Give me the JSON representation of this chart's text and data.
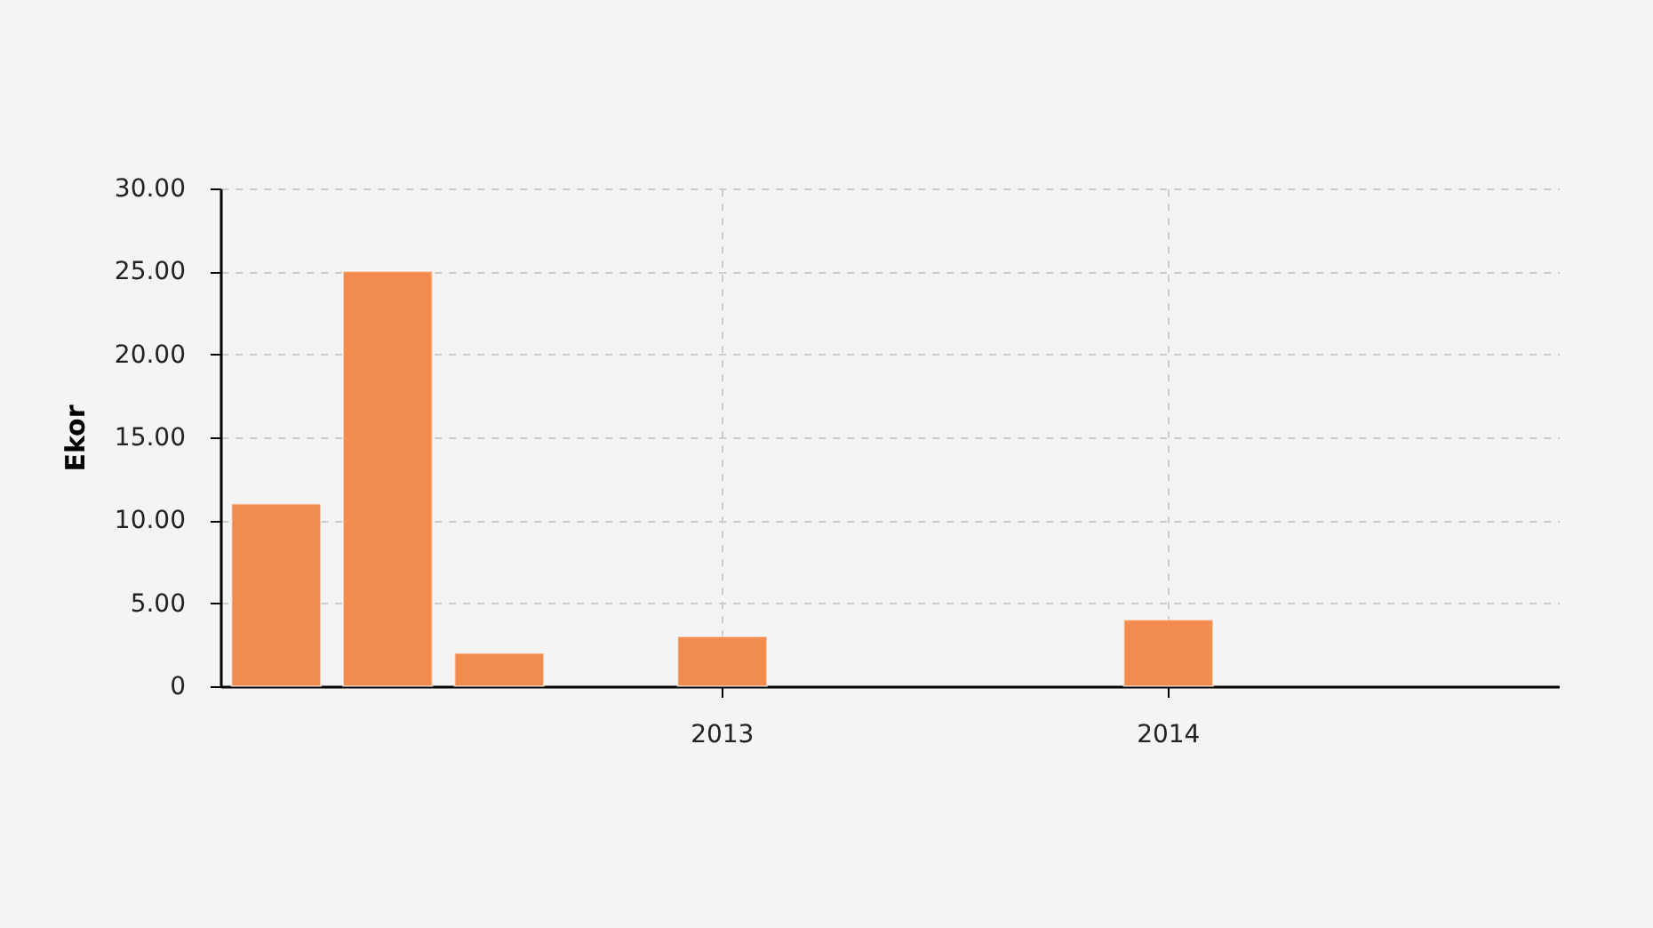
{
  "chart_data": {
    "type": "bar",
    "ylabel": "Ekor",
    "categories": [
      null,
      null,
      null,
      null,
      "2013",
      null,
      null,
      null,
      "2014",
      null,
      null,
      null
    ],
    "values": [
      11,
      25,
      2,
      null,
      3,
      null,
      null,
      null,
      4,
      null,
      null,
      null
    ],
    "color": "#f28c4e",
    "ylim": [
      0,
      30
    ],
    "yticks": [
      0,
      {
        "value": 5,
        "label": "5.00"
      },
      {
        "value": 10,
        "label": "10.00"
      },
      {
        "value": 15,
        "label": "15.00"
      },
      {
        "value": 20,
        "label": "20.00"
      },
      {
        "value": 25,
        "label": "25.00"
      },
      {
        "value": 30,
        "label": "30.00"
      }
    ],
    "grid": true
  }
}
